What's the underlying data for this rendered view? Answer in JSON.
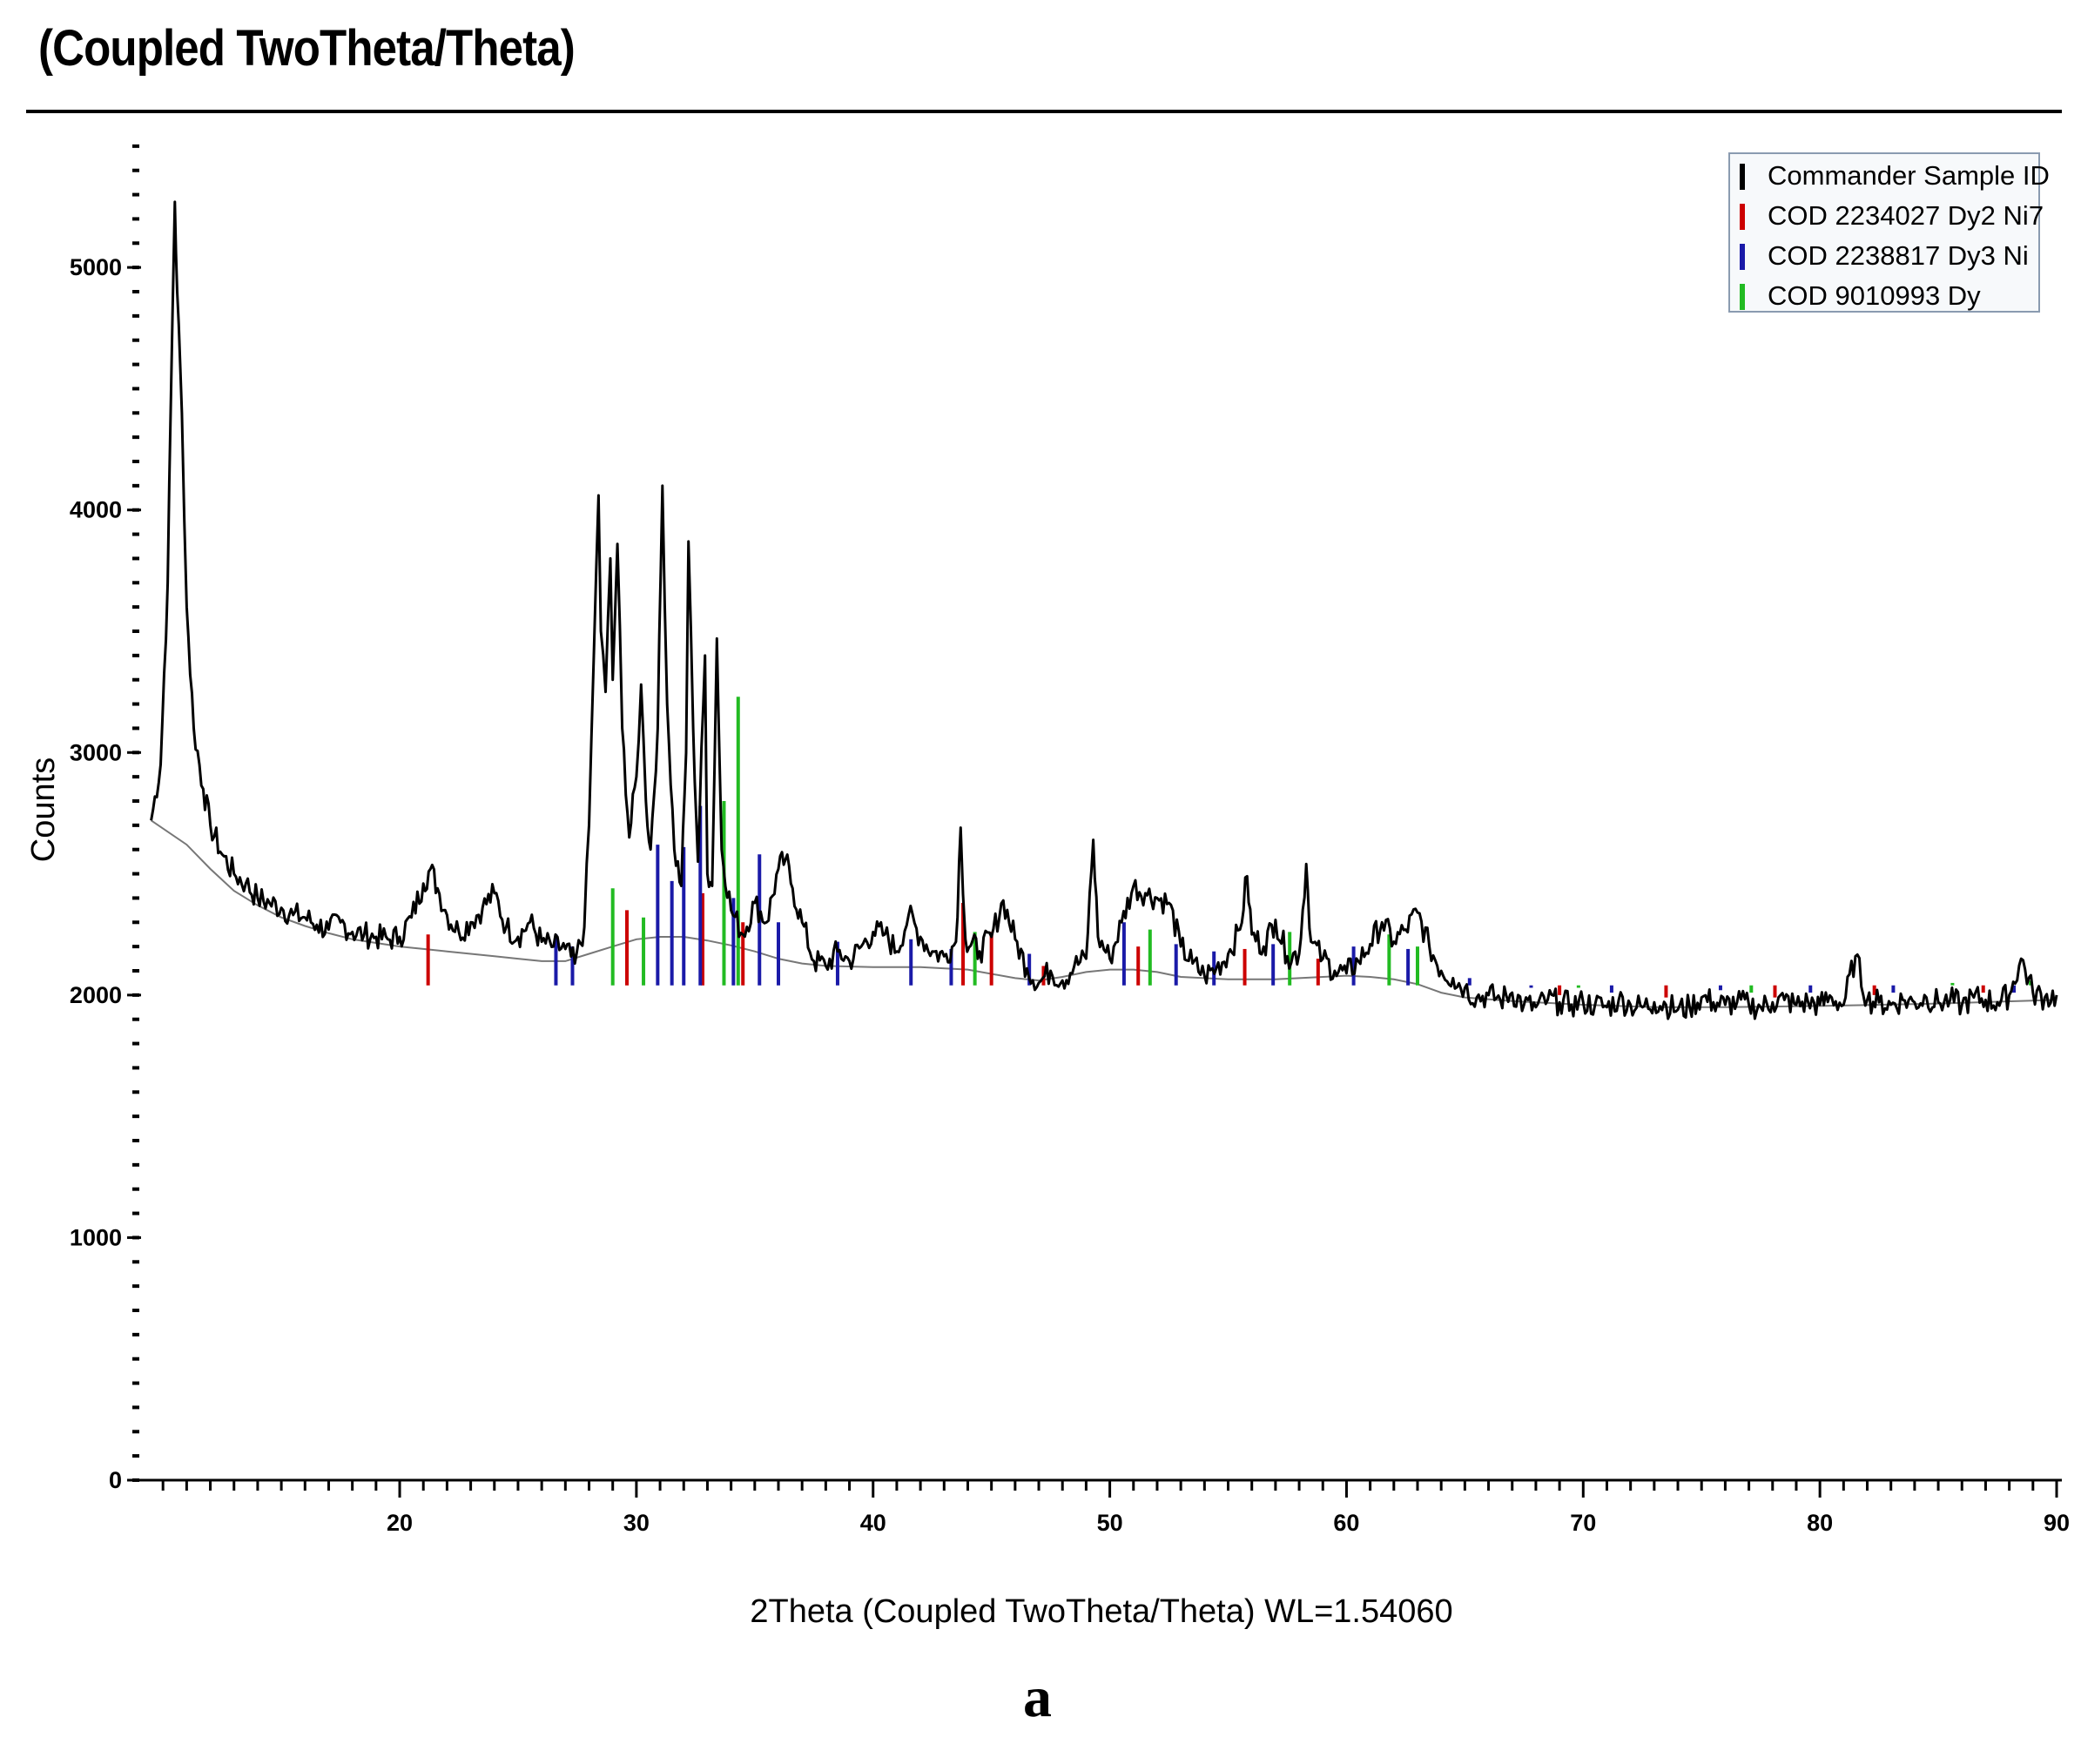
{
  "chart_data": {
    "type": "line",
    "title": "(Coupled TwoTheta/Theta)",
    "xlabel": "2Theta (Coupled TwoTheta/Theta) WL=1.54060",
    "ylabel": "Counts",
    "xlim": [
      9,
      90
    ],
    "ylim": [
      0,
      5600
    ],
    "x_ticks": [
      20,
      30,
      40,
      50,
      60,
      70,
      80,
      90
    ],
    "y_ticks": [
      0,
      1000,
      2000,
      3000,
      4000,
      5000
    ],
    "x_minor_step": 1,
    "y_minor_step": 100,
    "legend_position": "top-right",
    "figure_label": "a",
    "measured_series": {
      "name": "Commander Sample ID",
      "color": "#000000",
      "points": [
        [
          9.5,
          2720
        ],
        [
          9.9,
          2950
        ],
        [
          10.2,
          3700
        ],
        [
          10.4,
          4800
        ],
        [
          10.5,
          5270
        ],
        [
          10.6,
          4900
        ],
        [
          10.8,
          4400
        ],
        [
          11.0,
          3600
        ],
        [
          11.3,
          3100
        ],
        [
          11.7,
          2850
        ],
        [
          12.0,
          2700
        ],
        [
          12.5,
          2580
        ],
        [
          13.0,
          2500
        ],
        [
          13.5,
          2460
        ],
        [
          14.0,
          2400
        ],
        [
          14.5,
          2380
        ],
        [
          15.0,
          2360
        ],
        [
          15.5,
          2330
        ],
        [
          16.0,
          2320
        ],
        [
          16.5,
          2290
        ],
        [
          17.0,
          2270
        ],
        [
          17.5,
          2300
        ],
        [
          18.0,
          2260
        ],
        [
          18.5,
          2250
        ],
        [
          19.0,
          2240
        ],
        [
          19.5,
          2230
        ],
        [
          20.0,
          2240
        ],
        [
          20.5,
          2320
        ],
        [
          21.0,
          2460
        ],
        [
          21.3,
          2520
        ],
        [
          21.6,
          2440
        ],
        [
          22.0,
          2330
        ],
        [
          22.5,
          2260
        ],
        [
          23.0,
          2300
        ],
        [
          23.5,
          2360
        ],
        [
          24.0,
          2420
        ],
        [
          24.5,
          2280
        ],
        [
          25.0,
          2240
        ],
        [
          25.5,
          2300
        ],
        [
          26.0,
          2220
        ],
        [
          26.5,
          2200
        ],
        [
          27.0,
          2190
        ],
        [
          27.4,
          2130
        ],
        [
          27.8,
          2280
        ],
        [
          28.0,
          2700
        ],
        [
          28.2,
          3400
        ],
        [
          28.4,
          4060
        ],
        [
          28.5,
          3500
        ],
        [
          28.7,
          3250
        ],
        [
          28.9,
          3800
        ],
        [
          29.0,
          3300
        ],
        [
          29.2,
          3860
        ],
        [
          29.4,
          3100
        ],
        [
          29.7,
          2650
        ],
        [
          30.0,
          2900
        ],
        [
          30.2,
          3280
        ],
        [
          30.4,
          2800
        ],
        [
          30.6,
          2600
        ],
        [
          30.9,
          3100
        ],
        [
          31.1,
          4100
        ],
        [
          31.3,
          3200
        ],
        [
          31.6,
          2600
        ],
        [
          31.9,
          2450
        ],
        [
          32.1,
          3000
        ],
        [
          32.2,
          3870
        ],
        [
          32.4,
          3100
        ],
        [
          32.6,
          2550
        ],
        [
          32.9,
          3400
        ],
        [
          33.0,
          2500
        ],
        [
          33.2,
          2450
        ],
        [
          33.4,
          3470
        ],
        [
          33.6,
          2600
        ],
        [
          34.0,
          2350
        ],
        [
          34.5,
          2250
        ],
        [
          35.0,
          2380
        ],
        [
          35.5,
          2300
        ],
        [
          36.0,
          2520
        ],
        [
          36.3,
          2560
        ],
        [
          36.6,
          2440
        ],
        [
          37.0,
          2300
        ],
        [
          37.5,
          2140
        ],
        [
          38.0,
          2120
        ],
        [
          38.5,
          2180
        ],
        [
          39.0,
          2140
        ],
        [
          39.5,
          2200
        ],
        [
          40.0,
          2260
        ],
        [
          40.5,
          2250
        ],
        [
          41.0,
          2180
        ],
        [
          41.5,
          2330
        ],
        [
          42.0,
          2240
        ],
        [
          42.5,
          2180
        ],
        [
          43.0,
          2160
        ],
        [
          43.5,
          2220
        ],
        [
          43.7,
          2690
        ],
        [
          43.9,
          2230
        ],
        [
          44.5,
          2180
        ],
        [
          45.0,
          2240
        ],
        [
          45.5,
          2390
        ],
        [
          46.0,
          2230
        ],
        [
          46.5,
          2110
        ],
        [
          47.0,
          2050
        ],
        [
          47.5,
          2100
        ],
        [
          48.0,
          2060
        ],
        [
          48.5,
          2120
        ],
        [
          49.0,
          2150
        ],
        [
          49.3,
          2640
        ],
        [
          49.5,
          2240
        ],
        [
          50.0,
          2150
        ],
        [
          50.5,
          2300
        ],
        [
          51.0,
          2450
        ],
        [
          51.5,
          2420
        ],
        [
          52.0,
          2400
        ],
        [
          52.5,
          2380
        ],
        [
          53.0,
          2200
        ],
        [
          53.5,
          2130
        ],
        [
          54.0,
          2080
        ],
        [
          54.5,
          2110
        ],
        [
          55.0,
          2170
        ],
        [
          55.5,
          2270
        ],
        [
          55.8,
          2490
        ],
        [
          56.0,
          2250
        ],
        [
          56.5,
          2200
        ],
        [
          57.0,
          2310
        ],
        [
          57.5,
          2160
        ],
        [
          58.0,
          2170
        ],
        [
          58.3,
          2540
        ],
        [
          58.5,
          2220
        ],
        [
          59.0,
          2150
        ],
        [
          59.5,
          2100
        ],
        [
          60.0,
          2090
        ],
        [
          60.5,
          2140
        ],
        [
          61.0,
          2210
        ],
        [
          61.5,
          2300
        ],
        [
          62.0,
          2220
        ],
        [
          62.5,
          2270
        ],
        [
          63.0,
          2340
        ],
        [
          63.5,
          2200
        ],
        [
          64.0,
          2100
        ],
        [
          64.5,
          2070
        ],
        [
          65.0,
          2030
        ],
        [
          65.5,
          1990
        ],
        [
          66.0,
          2000
        ],
        [
          66.5,
          1980
        ],
        [
          67.0,
          2010
        ],
        [
          67.5,
          1960
        ],
        [
          68.0,
          1950
        ],
        [
          68.5,
          1980
        ],
        [
          69.0,
          1970
        ],
        [
          69.5,
          1960
        ],
        [
          70.0,
          1970
        ],
        [
          70.5,
          1960
        ],
        [
          71.0,
          1950
        ],
        [
          71.5,
          1980
        ],
        [
          72.0,
          1960
        ],
        [
          72.5,
          1950
        ],
        [
          73.0,
          1970
        ],
        [
          73.5,
          1960
        ],
        [
          74.0,
          1940
        ],
        [
          74.5,
          1950
        ],
        [
          75.0,
          1990
        ],
        [
          75.5,
          1970
        ],
        [
          76.0,
          1960
        ],
        [
          76.5,
          1970
        ],
        [
          77.0,
          1960
        ],
        [
          77.5,
          1950
        ],
        [
          78.0,
          1970
        ],
        [
          78.5,
          1980
        ],
        [
          79.0,
          1960
        ],
        [
          79.5,
          1970
        ],
        [
          80.0,
          1960
        ],
        [
          80.5,
          1990
        ],
        [
          81.0,
          1960
        ],
        [
          81.5,
          2160
        ],
        [
          82.0,
          1980
        ],
        [
          82.5,
          1970
        ],
        [
          83.0,
          1960
        ],
        [
          83.5,
          1980
        ],
        [
          84.0,
          1970
        ],
        [
          84.5,
          1990
        ],
        [
          85.0,
          1970
        ],
        [
          85.5,
          1980
        ],
        [
          86.0,
          1960
        ],
        [
          86.5,
          1990
        ],
        [
          87.0,
          1980
        ],
        [
          87.5,
          1970
        ],
        [
          88.0,
          2000
        ],
        [
          88.5,
          2150
        ],
        [
          89.0,
          2010
        ],
        [
          89.5,
          1990
        ],
        [
          90.0,
          2000
        ]
      ]
    },
    "background_curve": {
      "color": "#777777",
      "points": [
        [
          9.5,
          2720
        ],
        [
          11,
          2620
        ],
        [
          12,
          2520
        ],
        [
          13,
          2430
        ],
        [
          14,
          2370
        ],
        [
          15,
          2320
        ],
        [
          16,
          2285
        ],
        [
          17,
          2255
        ],
        [
          18,
          2230
        ],
        [
          19,
          2215
        ],
        [
          20,
          2200
        ],
        [
          21,
          2190
        ],
        [
          22,
          2180
        ],
        [
          23,
          2170
        ],
        [
          24,
          2160
        ],
        [
          25,
          2150
        ],
        [
          26,
          2140
        ],
        [
          27,
          2140
        ],
        [
          28,
          2170
        ],
        [
          29,
          2200
        ],
        [
          30,
          2230
        ],
        [
          31,
          2240
        ],
        [
          32,
          2240
        ],
        [
          33,
          2225
        ],
        [
          34,
          2205
        ],
        [
          35,
          2180
        ],
        [
          36,
          2150
        ],
        [
          37,
          2130
        ],
        [
          38,
          2120
        ],
        [
          40,
          2115
        ],
        [
          42,
          2115
        ],
        [
          44,
          2105
        ],
        [
          46,
          2070
        ],
        [
          47,
          2060
        ],
        [
          48,
          2075
        ],
        [
          49,
          2095
        ],
        [
          50,
          2105
        ],
        [
          51,
          2105
        ],
        [
          52,
          2095
        ],
        [
          53,
          2075
        ],
        [
          55,
          2065
        ],
        [
          57,
          2065
        ],
        [
          59,
          2075
        ],
        [
          60,
          2080
        ],
        [
          61,
          2075
        ],
        [
          62,
          2065
        ],
        [
          63,
          2045
        ],
        [
          64,
          2010
        ],
        [
          65,
          1990
        ],
        [
          67,
          1975
        ],
        [
          70,
          1960
        ],
        [
          73,
          1950
        ],
        [
          76,
          1950
        ],
        [
          80,
          1955
        ],
        [
          85,
          1965
        ],
        [
          90,
          1980
        ]
      ]
    },
    "reference_series": [
      {
        "name": "COD 2234027 Dy2 Ni7",
        "color": "#cc0000",
        "peaks": [
          [
            21.2,
            2250
          ],
          [
            29.6,
            2350
          ],
          [
            32.8,
            2420
          ],
          [
            34.5,
            2300
          ],
          [
            43.8,
            2380
          ],
          [
            45.0,
            2260
          ],
          [
            47.2,
            2120
          ],
          [
            51.2,
            2200
          ],
          [
            55.7,
            2190
          ],
          [
            58.8,
            2150
          ],
          [
            66.3,
            2040
          ],
          [
            69.0,
            2000
          ],
          [
            73.5,
            1990
          ],
          [
            78.1,
            1990
          ],
          [
            82.3,
            2000
          ],
          [
            86.9,
            2010
          ]
        ]
      },
      {
        "name": "COD 2238817 Dy3 Ni",
        "color": "#1a1aa8",
        "peaks": [
          [
            26.6,
            2250
          ],
          [
            27.3,
            2200
          ],
          [
            30.9,
            2620
          ],
          [
            31.5,
            2470
          ],
          [
            32.0,
            2610
          ],
          [
            32.7,
            2780
          ],
          [
            34.1,
            2400
          ],
          [
            35.2,
            2580
          ],
          [
            36.0,
            2300
          ],
          [
            38.5,
            2220
          ],
          [
            41.6,
            2230
          ],
          [
            43.3,
            2190
          ],
          [
            46.6,
            2170
          ],
          [
            50.6,
            2300
          ],
          [
            52.8,
            2210
          ],
          [
            54.4,
            2180
          ],
          [
            56.9,
            2210
          ],
          [
            60.3,
            2200
          ],
          [
            62.6,
            2190
          ],
          [
            65.2,
            2070
          ],
          [
            67.8,
            2030
          ],
          [
            71.2,
            2010
          ],
          [
            75.8,
            2020
          ],
          [
            79.6,
            2010
          ],
          [
            83.1,
            2010
          ],
          [
            88.2,
            2010
          ]
        ]
      },
      {
        "name": "COD 9010993 Dy",
        "color": "#22bb22",
        "peaks": [
          [
            29.0,
            2440
          ],
          [
            30.3,
            2320
          ],
          [
            33.7,
            2800
          ],
          [
            34.3,
            3230
          ],
          [
            44.3,
            2260
          ],
          [
            51.7,
            2270
          ],
          [
            57.6,
            2260
          ],
          [
            61.8,
            2250
          ],
          [
            63.0,
            2200
          ],
          [
            69.8,
            2030
          ],
          [
            77.1,
            2010
          ],
          [
            85.6,
            2050
          ],
          [
            88.9,
            2060
          ]
        ]
      }
    ]
  }
}
